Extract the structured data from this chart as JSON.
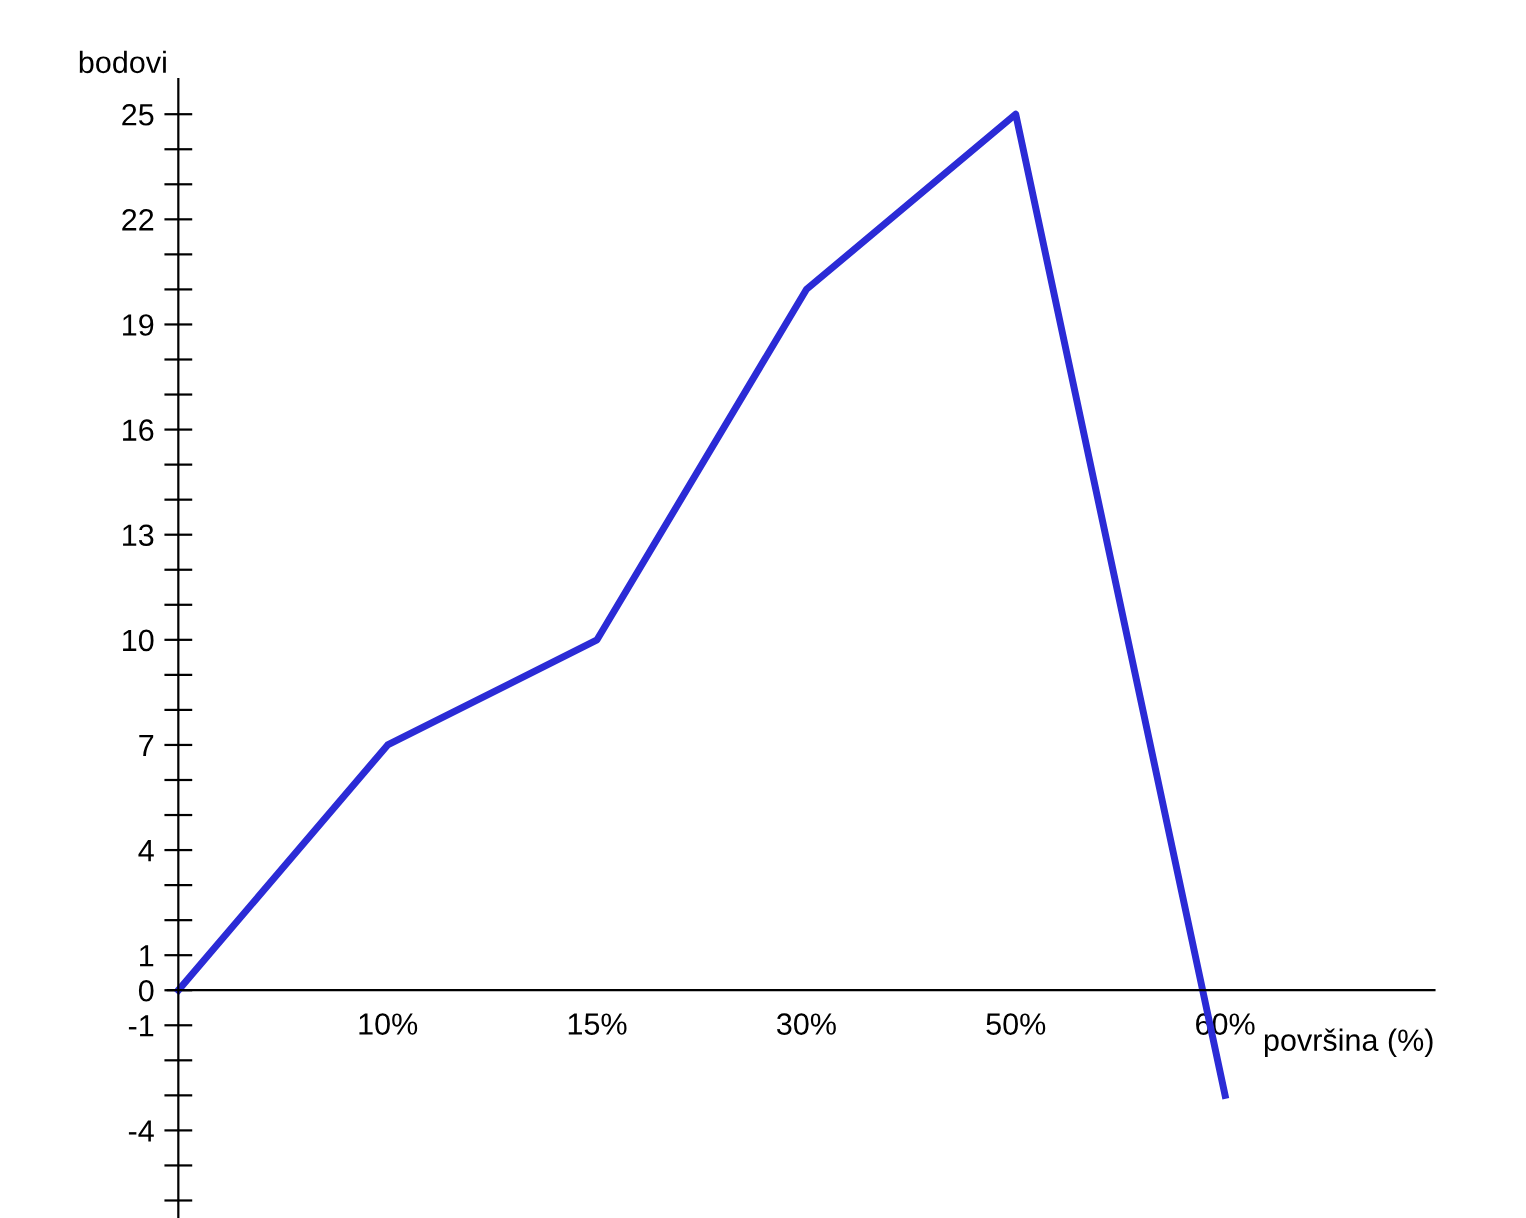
{
  "chart_data": {
    "type": "line",
    "categories": [
      null,
      "10%",
      "15%",
      "30%",
      "50%",
      "60%"
    ],
    "series": [
      {
        "color": "#2b2bd6",
        "values": [
          0,
          7,
          10,
          20,
          25,
          -3
        ]
      }
    ],
    "xlabel": "površina (%)",
    "ylabel": "bodovi",
    "ylim": [
      -6.5,
      26
    ],
    "yticks": [
      {
        "value": -6,
        "label": null
      },
      {
        "value": -5,
        "label": null
      },
      -4,
      {
        "value": -3,
        "label": null
      },
      {
        "value": -2,
        "label": null
      },
      -1,
      0,
      1,
      {
        "value": 2,
        "label": null
      },
      {
        "value": 3,
        "label": null
      },
      4,
      {
        "value": 5,
        "label": null
      },
      {
        "value": 6,
        "label": null
      },
      7,
      {
        "value": 8,
        "label": null
      },
      {
        "value": 9,
        "label": null
      },
      10,
      {
        "value": 11,
        "label": null
      },
      {
        "value": 12,
        "label": null
      },
      13,
      {
        "value": 14,
        "label": null
      },
      {
        "value": 15,
        "label": null
      },
      16,
      {
        "value": 17,
        "label": null
      },
      {
        "value": 18,
        "label": null
      },
      19,
      {
        "value": 20,
        "label": null
      },
      {
        "value": 21,
        "label": null
      },
      22,
      {
        "value": 23,
        "label": null
      },
      {
        "value": 24,
        "label": null
      },
      25
    ],
    "grid": false,
    "marker": "none",
    "line_style": "solid",
    "legend": false
  }
}
